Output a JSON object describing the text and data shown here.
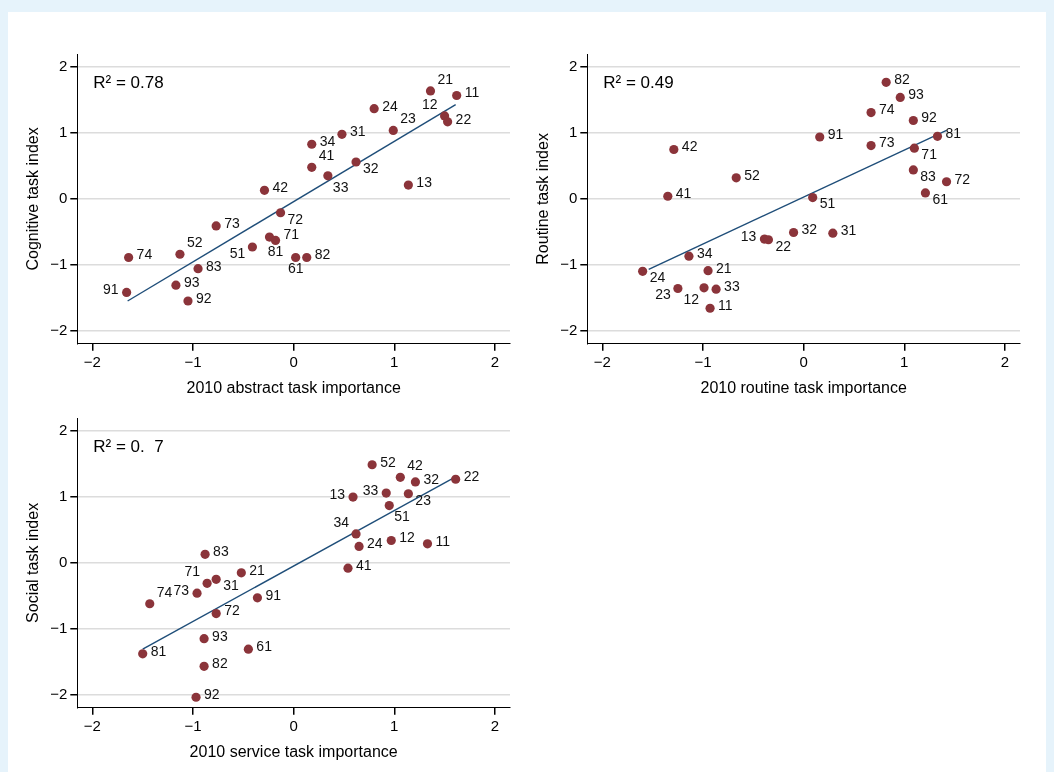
{
  "chart_data": [
    {
      "type": "scatter",
      "xlabel": "2010 abstract task importance",
      "ylabel": "Cognitive task index",
      "xlim": [
        -2.15,
        2.15
      ],
      "ylim": [
        -2.2,
        2.2
      ],
      "xticks": [
        -2,
        -1,
        0,
        1,
        2
      ],
      "yticks": [
        -2,
        -1,
        0,
        1,
        2
      ],
      "grid": "y",
      "annotations": [
        "R² = 0.78",
        {
          "text": "21",
          "x": 1.36,
          "y": 1.64
        },
        {
          "text": "11",
          "x": 1.62,
          "y": 1.57
        },
        {
          "text": "24",
          "x": 0.8,
          "y": 1.37
        },
        {
          "text": "12",
          "x": 1.5,
          "y": 1.26
        },
        {
          "text": "22",
          "x": 1.53,
          "y": 1.17
        },
        {
          "text": "23",
          "x": 0.99,
          "y": 1.04
        },
        {
          "text": "31",
          "x": 0.48,
          "y": 0.98
        },
        {
          "text": "34",
          "x": 0.18,
          "y": 0.83
        },
        {
          "text": "41",
          "x": 0.18,
          "y": 0.48
        },
        {
          "text": "32",
          "x": 0.62,
          "y": 0.56
        },
        {
          "text": "33",
          "x": 0.34,
          "y": 0.35
        },
        {
          "text": "13",
          "x": 1.14,
          "y": 0.21
        },
        {
          "text": "42",
          "x": -0.29,
          "y": 0.13
        },
        {
          "text": "72",
          "x": -0.13,
          "y": -0.21
        },
        {
          "text": "73",
          "x": -0.77,
          "y": -0.41
        },
        {
          "text": "71",
          "x": -0.24,
          "y": -0.58
        },
        {
          "text": "81",
          "x": -0.18,
          "y": -0.63
        },
        {
          "text": "51",
          "x": -0.41,
          "y": -0.73
        },
        {
          "text": "61",
          "x": 0.02,
          "y": -0.89
        },
        {
          "text": "82",
          "x": 0.13,
          "y": -0.89
        },
        {
          "text": "74",
          "x": -1.64,
          "y": -0.89
        },
        {
          "text": "52",
          "x": -1.13,
          "y": -0.84
        },
        {
          "text": "83",
          "x": -0.95,
          "y": -1.06
        },
        {
          "text": "91",
          "x": -1.66,
          "y": -1.42
        },
        {
          "text": "93",
          "x": -1.17,
          "y": -1.31
        },
        {
          "text": "92",
          "x": -1.05,
          "y": -1.55
        }
      ],
      "series": [
        {
          "color": "#8b343a",
          "marker": "circle",
          "x": [
            1.36,
            1.62,
            0.8,
            1.5,
            1.53,
            0.99,
            0.48,
            0.18,
            0.18,
            0.62,
            0.34,
            1.14,
            -0.29,
            -0.13,
            -0.77,
            -0.24,
            -0.18,
            -0.41,
            0.02,
            0.13,
            -1.64,
            -1.13,
            -0.95,
            -1.66,
            -1.17,
            -1.05
          ],
          "values": [
            1.64,
            1.57,
            1.37,
            1.26,
            1.17,
            1.04,
            0.98,
            0.83,
            0.48,
            0.56,
            0.35,
            0.21,
            0.13,
            -0.21,
            -0.41,
            -0.58,
            -0.63,
            -0.73,
            -0.89,
            -0.89,
            -0.89,
            -0.84,
            -1.06,
            -1.42,
            -1.31,
            -1.55
          ]
        },
        {
          "type": "line",
          "marker": "none",
          "color": "#1f4e79",
          "x": [
            -1.65,
            1.61
          ],
          "values": [
            -1.55,
            1.43
          ]
        }
      ]
    },
    {
      "type": "scatter",
      "xlabel": "2010 routine task importance",
      "ylabel": "Routine task index",
      "xlim": [
        -2.15,
        2.15
      ],
      "ylim": [
        -2.2,
        2.2
      ],
      "xticks": [
        -2,
        -1,
        0,
        1,
        2
      ],
      "yticks": [
        -2,
        -1,
        0,
        1,
        2
      ],
      "grid": "y",
      "annotations": [
        "R² = 0.49",
        {
          "text": "82",
          "x": 0.82,
          "y": 1.77
        },
        {
          "text": "93",
          "x": 0.96,
          "y": 1.54
        },
        {
          "text": "74",
          "x": 0.67,
          "y": 1.31
        },
        {
          "text": "92",
          "x": 1.09,
          "y": 1.19
        },
        {
          "text": "91",
          "x": 0.16,
          "y": 0.94
        },
        {
          "text": "81",
          "x": 1.33,
          "y": 0.95
        },
        {
          "text": "73",
          "x": 0.67,
          "y": 0.81
        },
        {
          "text": "71",
          "x": 1.1,
          "y": 0.77
        },
        {
          "text": "42",
          "x": -1.29,
          "y": 0.75
        },
        {
          "text": "83",
          "x": 1.09,
          "y": 0.44
        },
        {
          "text": "72",
          "x": 1.42,
          "y": 0.26
        },
        {
          "text": "52",
          "x": -0.67,
          "y": 0.32
        },
        {
          "text": "61",
          "x": 1.21,
          "y": 0.09
        },
        {
          "text": "41",
          "x": -1.35,
          "y": 0.04
        },
        {
          "text": "51",
          "x": 0.09,
          "y": 0.02
        },
        {
          "text": "32",
          "x": -0.1,
          "y": -0.51
        },
        {
          "text": "31",
          "x": 0.29,
          "y": -0.52
        },
        {
          "text": "13",
          "x": -0.39,
          "y": -0.61
        },
        {
          "text": "22",
          "x": -0.35,
          "y": -0.62
        },
        {
          "text": "34",
          "x": -1.14,
          "y": -0.87
        },
        {
          "text": "24",
          "x": -1.6,
          "y": -1.1
        },
        {
          "text": "21",
          "x": -0.95,
          "y": -1.09
        },
        {
          "text": "12",
          "x": -0.99,
          "y": -1.35
        },
        {
          "text": "23",
          "x": -1.25,
          "y": -1.36
        },
        {
          "text": "33",
          "x": -0.87,
          "y": -1.37
        },
        {
          "text": "11",
          "x": -0.93,
          "y": -1.66
        }
      ],
      "series": [
        {
          "color": "#8b343a",
          "marker": "circle",
          "x": [
            0.82,
            0.96,
            0.67,
            1.09,
            0.16,
            1.33,
            0.67,
            1.1,
            -1.29,
            1.09,
            1.42,
            -0.67,
            1.21,
            -1.35,
            0.09,
            -0.1,
            0.29,
            -0.39,
            -0.35,
            -1.14,
            -1.6,
            -0.95,
            -0.99,
            -1.25,
            -0.87,
            -0.93
          ],
          "values": [
            1.77,
            1.54,
            1.31,
            1.19,
            0.94,
            0.95,
            0.81,
            0.77,
            0.75,
            0.44,
            0.26,
            0.32,
            0.09,
            0.04,
            0.02,
            -0.51,
            -0.52,
            -0.61,
            -0.62,
            -0.87,
            -1.1,
            -1.09,
            -1.35,
            -1.36,
            -1.37,
            -1.66
          ]
        },
        {
          "type": "line",
          "marker": "none",
          "color": "#1f4e79",
          "x": [
            -1.54,
            1.42
          ],
          "values": [
            -1.07,
            1.04
          ]
        }
      ]
    },
    {
      "type": "scatter",
      "xlabel": "2010 service task importance",
      "ylabel": "Social task index",
      "xlim": [
        -2.15,
        2.15
      ],
      "ylim": [
        -2.2,
        2.2
      ],
      "xticks": [
        -2,
        -1,
        0,
        1,
        2
      ],
      "yticks": [
        -2,
        -1,
        0,
        1,
        2
      ],
      "grid": "y",
      "annotations": [
        "R² = 0.  7",
        {
          "text": "52",
          "x": 0.78,
          "y": 1.49
        },
        {
          "text": "42",
          "x": 1.06,
          "y": 1.3
        },
        {
          "text": "32",
          "x": 1.21,
          "y": 1.23
        },
        {
          "text": "22",
          "x": 1.61,
          "y": 1.27
        },
        {
          "text": "33",
          "x": 0.92,
          "y": 1.06
        },
        {
          "text": "23",
          "x": 1.14,
          "y": 1.05
        },
        {
          "text": "13",
          "x": 0.59,
          "y": 1.0
        },
        {
          "text": "51",
          "x": 0.95,
          "y": 0.87
        },
        {
          "text": "34",
          "x": 0.62,
          "y": 0.44
        },
        {
          "text": "12",
          "x": 0.97,
          "y": 0.34
        },
        {
          "text": "11",
          "x": 1.33,
          "y": 0.29
        },
        {
          "text": "24",
          "x": 0.65,
          "y": 0.25
        },
        {
          "text": "41",
          "x": 0.54,
          "y": -0.08
        },
        {
          "text": "83",
          "x": -0.88,
          "y": 0.13
        },
        {
          "text": "21",
          "x": -0.52,
          "y": -0.15
        },
        {
          "text": "31",
          "x": -0.77,
          "y": -0.25
        },
        {
          "text": "71",
          "x": -0.86,
          "y": -0.31
        },
        {
          "text": "73",
          "x": -0.96,
          "y": -0.46
        },
        {
          "text": "91",
          "x": -0.36,
          "y": -0.53
        },
        {
          "text": "74",
          "x": -1.43,
          "y": -0.62
        },
        {
          "text": "72",
          "x": -0.77,
          "y": -0.77
        },
        {
          "text": "93",
          "x": -0.89,
          "y": -1.15
        },
        {
          "text": "61",
          "x": -0.45,
          "y": -1.31
        },
        {
          "text": "81",
          "x": -1.5,
          "y": -1.38
        },
        {
          "text": "82",
          "x": -0.89,
          "y": -1.57
        },
        {
          "text": "92",
          "x": -0.97,
          "y": -2.04
        }
      ],
      "series": [
        {
          "color": "#8b343a",
          "marker": "circle",
          "x": [
            0.78,
            1.06,
            1.21,
            1.61,
            0.92,
            1.14,
            0.59,
            0.95,
            0.62,
            0.97,
            1.33,
            0.65,
            0.54,
            -0.88,
            -0.52,
            -0.77,
            -0.86,
            -0.96,
            -0.36,
            -1.43,
            -0.77,
            -0.89,
            -0.45,
            -1.5,
            -0.89,
            -0.97
          ],
          "values": [
            1.49,
            1.3,
            1.23,
            1.27,
            1.06,
            1.05,
            1.0,
            0.87,
            0.44,
            0.34,
            0.29,
            0.25,
            -0.08,
            0.13,
            -0.15,
            -0.25,
            -0.31,
            -0.46,
            -0.53,
            -0.62,
            -0.77,
            -1.15,
            -1.31,
            -1.38,
            -1.57,
            -2.04
          ]
        },
        {
          "type": "line",
          "marker": "none",
          "color": "#1f4e79",
          "x": [
            -1.5,
            1.6
          ],
          "values": [
            -1.31,
            1.3
          ]
        }
      ]
    }
  ]
}
